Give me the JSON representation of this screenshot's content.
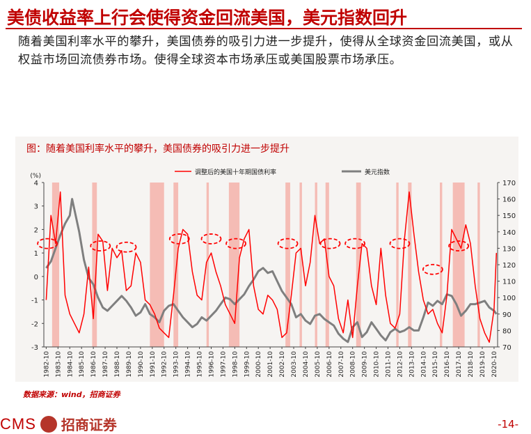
{
  "page": {
    "title": "美债收益率上行会使得资金回流美国，美元指数回升",
    "intro": "随着美国利率水平的攀升，美国债券的吸引力进一步提升，使得从全球资金回流美国，或从权益市场回流债券市场。使得全球资本市场承压或美国股票市场承压。",
    "source": "数据来源：wind，招商证券",
    "logo_text": "CMS",
    "logo_cn": "招商证券",
    "page_number": "-14-"
  },
  "colors": {
    "accent": "#c00000",
    "yield_line": "#ff0000",
    "dollar_line": "#7f7f7f",
    "shade": "#f4b1aa",
    "panel": "#f6f4f2"
  },
  "chart_data": {
    "type": "line",
    "title": "图：随着美国利率水平的攀升，美国债券的吸引力进一步提升",
    "left_unit": "(%)",
    "left_ylim": [
      -3,
      4
    ],
    "left_ticks": [
      -3,
      -2,
      -1,
      0,
      1,
      2,
      3,
      4
    ],
    "right_ylim": [
      70,
      170
    ],
    "right_ticks": [
      70,
      80,
      90,
      100,
      110,
      120,
      130,
      140,
      150,
      160,
      170
    ],
    "x_ticks": [
      "1982-10",
      "1983-10",
      "1984-10",
      "1985-10",
      "1986-10",
      "1987-10",
      "1988-10",
      "1989-10",
      "1990-10",
      "1991-10",
      "1992-10",
      "1993-10",
      "1994-10",
      "1995-10",
      "1996-10",
      "1997-10",
      "1998-10",
      "1999-10",
      "2000-10",
      "2001-10",
      "2002-10",
      "2003-10",
      "2004-10",
      "2005-10",
      "2006-10",
      "2007-10",
      "2008-10",
      "2009-10",
      "2010-10",
      "2011-10",
      "2012-10",
      "2013-10",
      "2014-10",
      "2015-10",
      "2016-10",
      "2017-10",
      "2018-10",
      "2019-10",
      "2020-10"
    ],
    "legend": "top-center",
    "series": [
      {
        "name": "调整后的美国十年期国债利率",
        "axis": "left",
        "x": [
          1982.8,
          1983.2,
          1983.6,
          1984.0,
          1984.4,
          1984.8,
          1985.2,
          1985.6,
          1986.0,
          1986.4,
          1986.8,
          1987.2,
          1987.6,
          1988.0,
          1988.4,
          1988.8,
          1989.2,
          1989.6,
          1990.0,
          1990.4,
          1990.8,
          1991.2,
          1991.6,
          1992.0,
          1992.4,
          1992.8,
          1993.2,
          1993.6,
          1994.0,
          1994.4,
          1994.8,
          1995.2,
          1995.6,
          1996.0,
          1996.4,
          1996.8,
          1997.2,
          1997.6,
          1998.0,
          1998.4,
          1998.8,
          1999.2,
          1999.6,
          2000.0,
          2000.4,
          2000.8,
          2001.2,
          2001.6,
          2002.0,
          2002.4,
          2002.8,
          2003.2,
          2003.6,
          2004.0,
          2004.4,
          2004.8,
          2005.2,
          2005.6,
          2006.0,
          2006.4,
          2006.8,
          2007.2,
          2007.6,
          2008.0,
          2008.4,
          2008.8,
          2009.2,
          2009.6,
          2010.0,
          2010.4,
          2010.8,
          2011.2,
          2011.6,
          2012.0,
          2012.4,
          2012.8,
          2013.2,
          2013.6,
          2014.0,
          2014.4,
          2014.8,
          2015.2,
          2015.6,
          2016.0,
          2016.4,
          2016.8,
          2017.2,
          2017.6,
          2018.0,
          2018.4,
          2018.8,
          2019.2,
          2019.6,
          2020.0,
          2020.4,
          2020.8,
          2021.0
        ],
        "values": [
          -1.0,
          2.6,
          1.4,
          3.6,
          -0.8,
          -1.6,
          -2.0,
          -2.4,
          -1.6,
          0.4,
          -1.8,
          1.8,
          1.5,
          -0.6,
          1.2,
          0.8,
          1.1,
          -0.6,
          -0.4,
          1.0,
          0.6,
          -1.0,
          -1.2,
          -1.6,
          -2.2,
          -2.4,
          -2.6,
          -0.8,
          1.2,
          2.0,
          1.8,
          0.2,
          -0.8,
          -1.0,
          0.6,
          1.0,
          0.2,
          -0.4,
          -1.2,
          -1.6,
          -2.0,
          0.8,
          1.6,
          2.0,
          -0.4,
          -1.4,
          -1.6,
          -0.8,
          -1.0,
          -1.4,
          -2.6,
          -2.4,
          -0.8,
          1.0,
          1.2,
          -0.4,
          0.6,
          2.6,
          1.4,
          1.6,
          0.0,
          -0.4,
          -1.8,
          -2.4,
          -1.0,
          -2.6,
          -0.4,
          1.4,
          1.2,
          -0.4,
          -1.2,
          1.2,
          -0.8,
          -2.0,
          -2.2,
          -1.6,
          1.6,
          3.6,
          1.8,
          0.2,
          -1.0,
          -1.6,
          -1.4,
          -2.0,
          -2.4,
          -0.8,
          2.0,
          1.6,
          1.2,
          2.2,
          1.4,
          -0.4,
          -1.8,
          -2.4,
          -2.8,
          -1.4,
          1.0
        ]
      },
      {
        "name": "美元指数",
        "axis": "right",
        "x": [
          1982.8,
          1983.2,
          1983.6,
          1984.0,
          1984.4,
          1984.8,
          1985.0,
          1985.3,
          1985.6,
          1986.0,
          1986.4,
          1986.8,
          1987.2,
          1987.6,
          1988.0,
          1988.4,
          1988.8,
          1989.2,
          1989.6,
          1990.0,
          1990.4,
          1990.8,
          1991.2,
          1991.6,
          1992.0,
          1992.4,
          1992.8,
          1993.2,
          1993.6,
          1994.0,
          1994.4,
          1994.8,
          1995.2,
          1995.6,
          1996.0,
          1996.4,
          1996.8,
          1997.2,
          1997.6,
          1998.0,
          1998.4,
          1998.8,
          1999.2,
          1999.6,
          2000.0,
          2000.4,
          2000.8,
          2001.2,
          2001.6,
          2002.0,
          2002.4,
          2002.8,
          2003.2,
          2003.6,
          2004.0,
          2004.4,
          2004.8,
          2005.2,
          2005.6,
          2006.0,
          2006.4,
          2006.8,
          2007.2,
          2007.6,
          2008.0,
          2008.4,
          2008.8,
          2009.2,
          2009.6,
          2010.0,
          2010.4,
          2010.8,
          2011.2,
          2011.6,
          2012.0,
          2012.4,
          2012.8,
          2013.2,
          2013.6,
          2014.0,
          2014.4,
          2014.8,
          2015.2,
          2015.6,
          2016.0,
          2016.4,
          2016.8,
          2017.2,
          2017.6,
          2018.0,
          2018.4,
          2018.8,
          2019.2,
          2019.6,
          2020.0,
          2020.4,
          2020.8,
          2021.0
        ],
        "values": [
          118,
          122,
          130,
          138,
          145,
          150,
          160,
          150,
          140,
          123,
          112,
          108,
          100,
          94,
          92,
          95,
          98,
          101,
          98,
          94,
          89,
          91,
          96,
          90,
          88,
          85,
          92,
          95,
          96,
          92,
          88,
          85,
          82,
          84,
          88,
          86,
          89,
          92,
          96,
          100,
          99,
          96,
          99,
          102,
          107,
          111,
          116,
          118,
          115,
          116,
          110,
          104,
          100,
          96,
          88,
          90,
          86,
          84,
          89,
          90,
          87,
          85,
          83,
          78,
          75,
          73,
          82,
          85,
          76,
          79,
          85,
          81,
          77,
          74,
          79,
          81,
          79,
          80,
          82,
          80,
          80,
          88,
          97,
          95,
          98,
          96,
          102,
          101,
          96,
          89,
          92,
          96,
          96,
          97,
          98,
          94,
          92,
          90
        ]
      }
    ],
    "shaded_periods": [
      [
        1983.3,
        1983.9
      ],
      [
        1986.7,
        1987.1
      ],
      [
        1991.6,
        1992.8
      ],
      [
        1993.6,
        1994.0
      ],
      [
        1996.4,
        1996.6
      ],
      [
        1998.3,
        1999.2
      ],
      [
        2003.1,
        2003.5
      ],
      [
        2004.3,
        2004.5
      ],
      [
        2005.6,
        2005.8
      ],
      [
        2006.5,
        2006.8
      ],
      [
        2009.1,
        2009.5
      ],
      [
        2012.5,
        2012.7
      ],
      [
        2013.5,
        2013.8
      ],
      [
        2016.2,
        2016.4
      ],
      [
        2017.3,
        2018.3
      ],
      [
        2019.4,
        2019.6
      ]
    ],
    "annotations_ellipses": [
      [
        1982.9,
        1.4
      ],
      [
        1987.4,
        1.3
      ],
      [
        1989.6,
        1.25
      ],
      [
        1994.1,
        1.6
      ],
      [
        1996.8,
        1.6
      ],
      [
        1998.9,
        1.4
      ],
      [
        2003.3,
        1.4
      ],
      [
        2006.9,
        1.4
      ],
      [
        2009.0,
        1.4
      ],
      [
        2012.8,
        1.4
      ],
      [
        2015.6,
        0.3
      ],
      [
        2017.8,
        1.3
      ]
    ]
  }
}
